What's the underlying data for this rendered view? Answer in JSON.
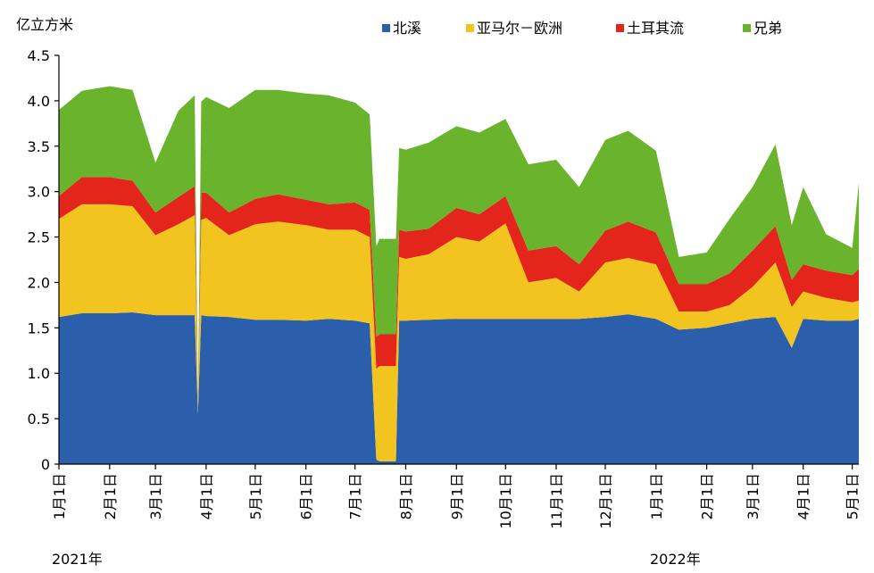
{
  "chart_data": {
    "type": "area",
    "stacked": true,
    "ylabel": "亿立方米",
    "ylim": [
      0,
      4.5
    ],
    "yticks": [
      "0",
      "0.5",
      "1.0",
      "1.5",
      "2.0",
      "2.5",
      "3.0",
      "3.5",
      "4.0",
      "4.5"
    ],
    "xticks": [
      "1月1日",
      "2月1日",
      "3月1日",
      "4月1日",
      "5月1日",
      "6月1日",
      "7月1日",
      "8月1日",
      "9月1日",
      "10月1日",
      "11月1日",
      "12月1日",
      "1月1日",
      "2月1日",
      "3月1日",
      "4月1日",
      "5月1日"
    ],
    "year_labels": [
      "2021年",
      "2022年"
    ],
    "x": [
      "2021-01-01",
      "2021-01-15",
      "2021-02-01",
      "2021-02-15",
      "2021-03-01",
      "2021-03-15",
      "2021-03-25",
      "2021-03-27",
      "2021-03-29",
      "2021-04-01",
      "2021-04-15",
      "2021-05-01",
      "2021-05-15",
      "2021-06-01",
      "2021-06-15",
      "2021-07-01",
      "2021-07-10",
      "2021-07-14",
      "2021-07-16",
      "2021-07-18",
      "2021-07-26",
      "2021-07-28",
      "2021-08-01",
      "2021-08-15",
      "2021-09-01",
      "2021-09-15",
      "2021-10-01",
      "2021-10-15",
      "2021-11-01",
      "2021-11-15",
      "2021-12-01",
      "2021-12-15",
      "2022-01-01",
      "2022-01-15",
      "2022-02-01",
      "2022-02-15",
      "2022-03-01",
      "2022-03-15",
      "2022-03-25",
      "2022-04-01",
      "2022-04-15",
      "2022-05-01",
      "2022-05-05"
    ],
    "series": [
      {
        "name": "北溪",
        "color": "#2b5fab",
        "values": [
          1.62,
          1.66,
          1.66,
          1.67,
          1.64,
          1.64,
          1.64,
          0.55,
          1.64,
          1.63,
          1.62,
          1.59,
          1.59,
          1.58,
          1.6,
          1.58,
          1.55,
          0.05,
          0.03,
          0.03,
          0.03,
          1.58,
          1.58,
          1.59,
          1.6,
          1.6,
          1.6,
          1.6,
          1.6,
          1.6,
          1.62,
          1.65,
          1.6,
          1.48,
          1.5,
          1.55,
          1.6,
          1.62,
          1.28,
          1.6,
          1.58,
          1.58,
          1.6
        ]
      },
      {
        "name": "亚马尔－欧洲",
        "color": "#f2c420",
        "values": [
          1.08,
          1.2,
          1.2,
          1.17,
          0.88,
          1.0,
          1.1,
          0.05,
          1.05,
          1.08,
          0.9,
          1.05,
          1.08,
          1.05,
          0.98,
          1.0,
          0.95,
          1.0,
          1.05,
          1.05,
          1.05,
          0.7,
          0.68,
          0.72,
          0.9,
          0.85,
          1.05,
          0.4,
          0.45,
          0.3,
          0.6,
          0.62,
          0.6,
          0.2,
          0.18,
          0.2,
          0.35,
          0.6,
          0.45,
          0.3,
          0.25,
          0.2,
          0.2
        ]
      },
      {
        "name": "土耳其流",
        "color": "#e3251c",
        "values": [
          0.25,
          0.3,
          0.3,
          0.28,
          0.25,
          0.3,
          0.32,
          0.05,
          0.3,
          0.28,
          0.25,
          0.28,
          0.3,
          0.28,
          0.28,
          0.3,
          0.3,
          0.35,
          0.35,
          0.35,
          0.35,
          0.3,
          0.3,
          0.28,
          0.32,
          0.3,
          0.3,
          0.35,
          0.35,
          0.3,
          0.35,
          0.4,
          0.35,
          0.3,
          0.3,
          0.35,
          0.4,
          0.4,
          0.3,
          0.3,
          0.3,
          0.3,
          0.35
        ]
      },
      {
        "name": "兄弟",
        "color": "#6ab42d",
        "values": [
          0.95,
          0.95,
          1.0,
          1.0,
          0.55,
          0.95,
          1.0,
          0.05,
          1.0,
          1.05,
          1.15,
          1.2,
          1.15,
          1.17,
          1.2,
          1.1,
          1.05,
          1.0,
          1.05,
          1.05,
          1.05,
          0.9,
          0.9,
          0.95,
          0.9,
          0.9,
          0.85,
          0.95,
          0.95,
          0.85,
          1.0,
          1.0,
          0.9,
          0.3,
          0.35,
          0.6,
          0.7,
          0.9,
          0.6,
          0.85,
          0.4,
          0.3,
          0.95
        ]
      }
    ],
    "legend_position": "top",
    "grid": false
  }
}
